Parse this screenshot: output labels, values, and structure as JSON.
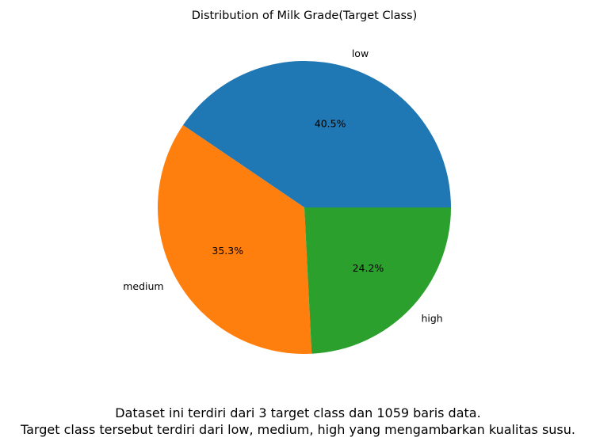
{
  "chart_data": {
    "type": "pie",
    "title": "Distribution of Milk Grade(Target Class)",
    "categories": [
      "low",
      "medium",
      "high"
    ],
    "values": [
      40.5,
      35.3,
      24.2
    ],
    "data_labels": [
      "40.5%",
      "35.3%",
      "24.2%"
    ],
    "colors": [
      "#1f77b4",
      "#ff7f0e",
      "#2ca02c"
    ],
    "start_angle_deg": 0,
    "direction": "counterclockwise"
  },
  "caption": {
    "line1": "Dataset ini terdiri dari 3 target class dan 1059 baris data.",
    "line2": "Target class tersebut terdiri dari low, medium, high yang mengambarkan kualitas susu."
  }
}
